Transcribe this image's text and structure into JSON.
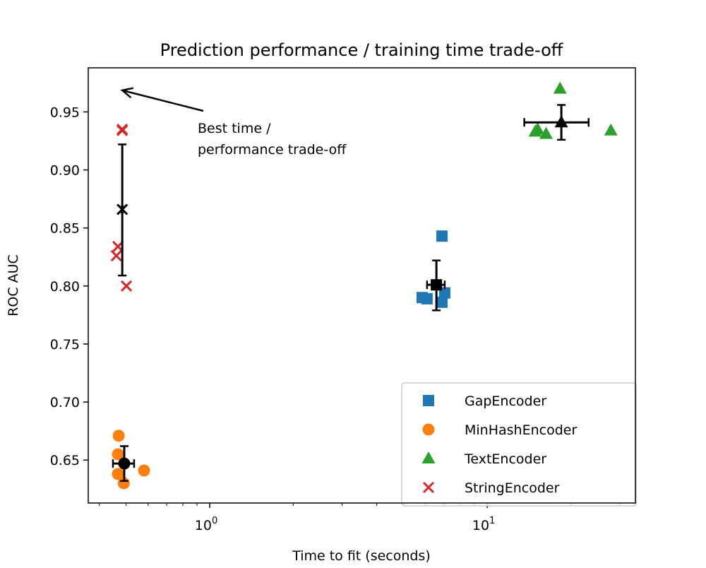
{
  "chart_data": {
    "type": "scatter",
    "title": "Prediction performance / training time trade-off",
    "xlabel": "Time to fit (seconds)",
    "ylabel": "ROC AUC",
    "xscale": "log",
    "xlim": [
      0.365,
      34.2
    ],
    "ylim": [
      0.613,
      0.988
    ],
    "x_ticks": [
      {
        "value": 1,
        "base": "10",
        "exp": "0"
      },
      {
        "value": 10,
        "base": "10",
        "exp": "1"
      }
    ],
    "y_ticks": [
      0.65,
      0.7,
      0.75,
      0.8,
      0.85,
      0.9,
      0.95
    ],
    "y_tick_labels": [
      "0.65",
      "0.70",
      "0.75",
      "0.80",
      "0.85",
      "0.90",
      "0.95"
    ],
    "grid": false,
    "legend_position": "lower-right",
    "series": [
      {
        "name": "GapEncoder",
        "color": "#1f77b4",
        "marker": "square",
        "points": [
          [
            6.87,
            0.843
          ],
          [
            5.83,
            0.79
          ],
          [
            6.07,
            0.789
          ],
          [
            7.03,
            0.794
          ],
          [
            6.87,
            0.786
          ]
        ],
        "mean": {
          "x": 6.56,
          "y": 0.801,
          "xerr": [
            6.07,
            7.03
          ],
          "yerr": [
            0.779,
            0.822
          ]
        }
      },
      {
        "name": "MinHashEncoder",
        "color": "#ff7f0e",
        "marker": "circle",
        "points": [
          [
            0.47,
            0.671
          ],
          [
            0.467,
            0.655
          ],
          [
            0.467,
            0.638
          ],
          [
            0.49,
            0.63
          ],
          [
            0.58,
            0.641
          ]
        ],
        "mean": {
          "x": 0.492,
          "y": 0.647,
          "xerr": [
            0.448,
            0.534
          ],
          "yerr": [
            0.632,
            0.662
          ]
        }
      },
      {
        "name": "TextEncoder",
        "color": "#2ca02c",
        "marker": "triangle",
        "points": [
          [
            18.3,
            0.97
          ],
          [
            14.9,
            0.933
          ],
          [
            16.3,
            0.931
          ],
          [
            27.9,
            0.934
          ],
          [
            15.2,
            0.935
          ]
        ],
        "mean": {
          "x": 18.5,
          "y": 0.941,
          "xerr": [
            13.6,
            23.2
          ],
          "yerr": [
            0.926,
            0.956
          ]
        }
      },
      {
        "name": "StringEncoder",
        "color": "#d62728",
        "marker": "x",
        "points": [
          [
            0.484,
            0.934
          ],
          [
            0.467,
            0.834
          ],
          [
            0.461,
            0.826
          ],
          [
            0.501,
            0.8
          ],
          [
            0.484,
            0.935
          ]
        ],
        "mean": {
          "x": 0.484,
          "y": 0.866,
          "xerr": [
            0.482,
            0.486
          ],
          "yerr": [
            0.809,
            0.922
          ]
        }
      }
    ],
    "annotations": [
      {
        "text_lines": [
          "Best time /",
          "performance trade-off"
        ],
        "text_x": 0.905,
        "text_y": 0.937,
        "arrow_to_x": 0.484,
        "arrow_to_y": 0.9686
      }
    ]
  }
}
